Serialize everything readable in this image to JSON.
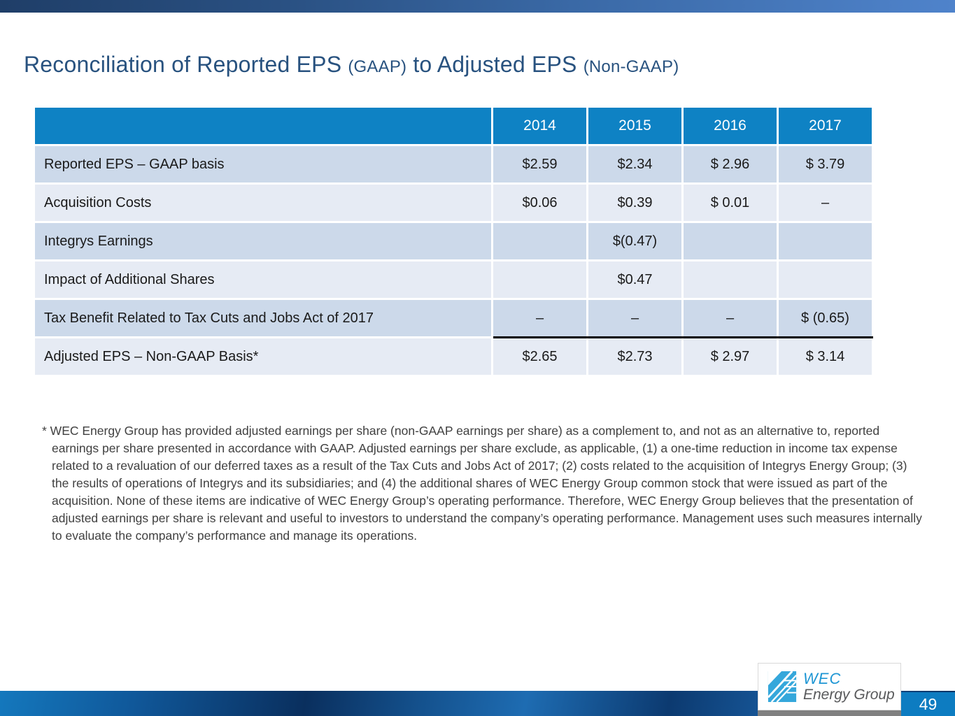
{
  "title": {
    "part1": "Reconciliation of Reported EPS",
    "part2": "(GAAP)",
    "part3": "to Adjusted EPS",
    "part4": "(Non-GAAP)"
  },
  "table": {
    "years": [
      "2014",
      "2015",
      "2016",
      "2017"
    ],
    "rows": [
      {
        "label": "Reported EPS – GAAP basis",
        "values": [
          "$2.59",
          "$2.34",
          "$ 2.96",
          "$ 3.79"
        ]
      },
      {
        "label": "Acquisition Costs",
        "values": [
          "$0.06",
          "$0.39",
          "$ 0.01",
          "–"
        ]
      },
      {
        "label": "Integrys Earnings",
        "values": [
          "",
          "$(0.47)",
          "",
          ""
        ]
      },
      {
        "label": "Impact of Additional Shares",
        "values": [
          "",
          "$0.47",
          "",
          ""
        ]
      },
      {
        "label": "Tax Benefit Related to Tax Cuts and Jobs Act of 2017",
        "values": [
          "–",
          "–",
          "–",
          "$ (0.65)"
        ]
      },
      {
        "label": "Adjusted EPS – Non-GAAP Basis*",
        "values": [
          "$2.65",
          "$2.73",
          "$ 2.97",
          "$ 3.14"
        ]
      }
    ]
  },
  "footnote": "* WEC Energy Group has provided adjusted earnings per share (non-GAAP earnings per share) as a complement to, and not as an alternative to, reported earnings per share presented in accordance with GAAP. Adjusted earnings per share exclude, as applicable, (1) a one-time reduction in income tax expense related to a revaluation of our deferred taxes as a result of the Tax Cuts and Jobs Act of 2017; (2) costs related to the acquisition of Integrys Energy Group; (3) the results of operations of Integrys and its subsidiaries; and (4) the additional shares of WEC Energy Group common stock that were issued as part of the acquisition. None of these items are indicative of WEC Energy Group’s operating performance. Therefore, WEC Energy Group believes that the presentation of adjusted earnings per share is relevant and useful to investors to understand the company’s operating performance. Management uses such measures internally to evaluate the company’s performance and manage its operations.",
  "logo": {
    "line1": "WEC",
    "line2": "Energy Group"
  },
  "page_number": "49",
  "colors": {
    "header_blue": "#0e82c4",
    "band_dark": "#ccd9ea",
    "band_light": "#e6ebf4",
    "title_blue": "#28527f",
    "top_bar_left": "#1f3e68",
    "top_bar_right": "#4f83cb",
    "page_box_blue": "#0d7cc1",
    "logo_mark_blue": "#35a7db",
    "logo_text_blue": "#1e96d4",
    "logo_text_gray": "#58595b"
  }
}
